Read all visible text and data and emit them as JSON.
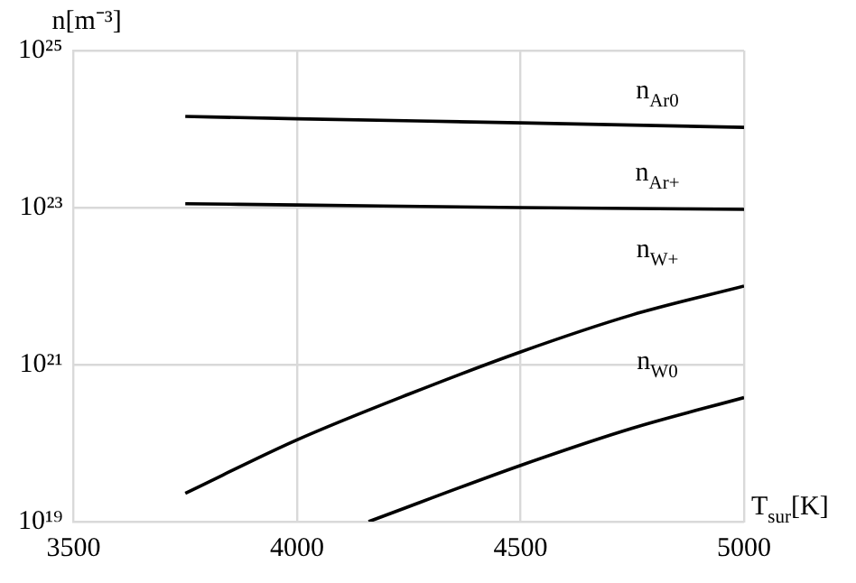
{
  "chart_data": {
    "type": "line",
    "xlabel": "T$_{sur}$[K]",
    "ylabel": "n[m⁻³]",
    "log": "y",
    "grid": true,
    "legend": false,
    "marker": "none",
    "line_style": "solid",
    "xlim": [
      3500,
      5000
    ],
    "xticks": [
      3500,
      4000,
      4500,
      5000
    ],
    "ylim": [
      1e+19,
      1e+25
    ],
    "yticks": [
      {
        "value": 1e+19,
        "label": "10¹⁹"
      },
      {
        "value": 1e+21,
        "label": "10²¹"
      },
      {
        "value": 1e+23,
        "label": "10²³"
      },
      {
        "value": 1e+25,
        "label": "10²⁵"
      }
    ],
    "series": [
      {
        "name": "n$_{Ar0}$",
        "color": "#000000",
        "x": [
          3750,
          4000,
          4500,
          5000
        ],
        "values": [
          1.45e+24,
          1.35e+24,
          1.2e+24,
          1.05e+24
        ]
      },
      {
        "name": "n$_{Ar+}$",
        "color": "#000000",
        "x": [
          3750,
          4000,
          4500,
          5000
        ],
        "values": [
          1.12e+23,
          1.08e+23,
          1e+23,
          9.5e+22
        ]
      },
      {
        "name": "n$_{W+}$",
        "color": "#000000",
        "x": [
          3750,
          4000,
          4250,
          4500,
          4750,
          5000
        ],
        "values": [
          2.3e+19,
          1.1e+20,
          4.2e+20,
          1.45e+21,
          4.3e+21,
          1e+22
        ]
      },
      {
        "name": "n$_{W0}$",
        "color": "#000000",
        "x": [
          4160,
          4500,
          4750,
          5000
        ],
        "values": [
          1e+19,
          5.2e+19,
          1.55e+20,
          3.8e+20
        ]
      }
    ]
  }
}
